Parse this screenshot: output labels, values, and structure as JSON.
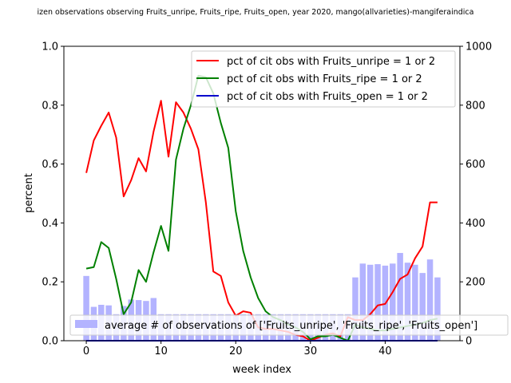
{
  "chart_data": {
    "type": "line",
    "title": "izen observations observing Fruits_unripe, Fruits_ripe, Fruits_open, year 2020, mango(allvarieties)-mangiferaindica",
    "xlabel": "week index",
    "ylabel": "percent",
    "xlim": [
      -3,
      50
    ],
    "ylim": [
      0,
      1.0
    ],
    "y2lim": [
      0,
      1000
    ],
    "x_ticks": [
      0,
      10,
      20,
      30,
      40
    ],
    "y_ticks": [
      0.0,
      0.2,
      0.4,
      0.6,
      0.8,
      1.0
    ],
    "y2_ticks": [
      0,
      200,
      400,
      600,
      800,
      1000
    ],
    "x_tick_labels": [
      "0",
      "10",
      "20",
      "30",
      "40"
    ],
    "y_tick_labels": [
      "0.0",
      "0.2",
      "0.4",
      "0.6",
      "0.8",
      "1.0"
    ],
    "y2_tick_labels": [
      "0",
      "200",
      "400",
      "600",
      "800",
      "1000"
    ],
    "x": [
      0,
      1,
      2,
      3,
      4,
      5,
      6,
      7,
      8,
      9,
      10,
      11,
      12,
      13,
      14,
      15,
      16,
      17,
      18,
      19,
      20,
      21,
      22,
      23,
      24,
      25,
      26,
      27,
      28,
      29,
      30,
      31,
      32,
      33,
      34,
      35,
      36,
      37,
      38,
      39,
      40,
      41,
      42,
      43,
      44,
      45,
      46,
      47
    ],
    "series": [
      {
        "name": "pct of cit obs with Fruits_unripe = 1 or 2",
        "color": "#ff0000",
        "values": [
          0.57,
          0.68,
          0.73,
          0.775,
          0.69,
          0.49,
          0.545,
          0.62,
          0.575,
          0.71,
          0.815,
          0.625,
          0.81,
          0.775,
          0.72,
          0.65,
          0.47,
          0.235,
          0.22,
          0.13,
          0.085,
          0.1,
          0.095,
          0.045,
          0.04,
          0.04,
          0.035,
          0.03,
          0.02,
          0.015,
          0.0,
          0.01,
          0.02,
          0.025,
          0.015,
          0.08,
          0.07,
          0.07,
          0.09,
          0.12,
          0.125,
          0.165,
          0.21,
          0.225,
          0.28,
          0.32,
          0.47,
          0.47
        ]
      },
      {
        "name": "pct of cit obs with Fruits_ripe = 1 or 2",
        "color": "#008000",
        "values": [
          0.245,
          0.25,
          0.335,
          0.315,
          0.21,
          0.09,
          0.13,
          0.24,
          0.2,
          0.3,
          0.39,
          0.305,
          0.615,
          0.72,
          0.8,
          0.9,
          0.895,
          0.84,
          0.74,
          0.655,
          0.44,
          0.305,
          0.215,
          0.145,
          0.1,
          0.08,
          0.07,
          0.055,
          0.045,
          0.03,
          0.005,
          0.015,
          0.015,
          0.02,
          0.01,
          0.0,
          0.055,
          0.045,
          0.04,
          0.035,
          0.035,
          0.04,
          0.045,
          0.05,
          0.055,
          0.06,
          0.07,
          0.075
        ]
      },
      {
        "name": "pct of cit obs with Fruits_open = 1 or 2",
        "color": "#0000cc",
        "values": [
          0,
          0,
          0,
          0,
          0,
          0,
          0,
          0,
          0,
          0,
          0,
          0,
          0,
          0,
          0,
          0,
          0,
          0,
          0,
          0,
          0,
          0,
          0,
          0,
          0,
          0,
          0,
          0,
          0,
          0,
          0,
          0,
          0,
          0,
          0,
          0,
          0,
          0,
          0,
          0,
          0,
          0,
          0,
          0,
          0,
          0,
          0,
          0
        ]
      }
    ],
    "bars": {
      "name": "average # of observations of ['Fruits_unripe', 'Fruits_ripe', 'Fruits_open']",
      "color": "#b3b3ff",
      "axis": "right",
      "values": [
        220,
        115,
        122,
        120,
        90,
        118,
        140,
        138,
        135,
        145,
        90,
        90,
        90,
        90,
        90,
        90,
        90,
        90,
        90,
        90,
        90,
        90,
        90,
        90,
        90,
        90,
        90,
        90,
        90,
        90,
        90,
        90,
        90,
        90,
        90,
        90,
        215,
        262,
        258,
        260,
        255,
        262,
        298,
        265,
        258,
        230,
        276,
        215
      ]
    },
    "grid": false,
    "legend_top": "top-right",
    "legend_bottom": "lower-right"
  }
}
